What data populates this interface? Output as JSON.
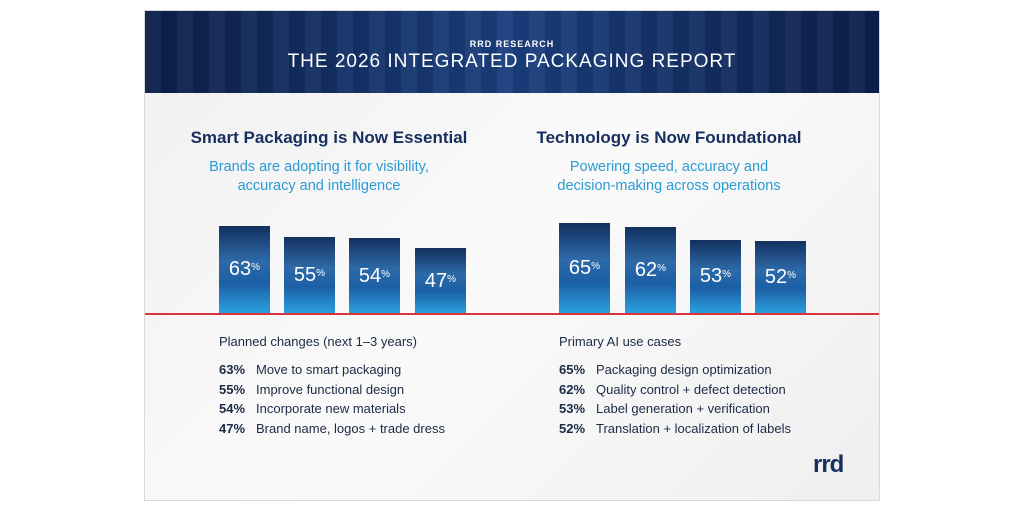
{
  "header": {
    "kicker": "RRD RESEARCH",
    "title": "THE 2026 INTEGRATED PACKAGING REPORT"
  },
  "left": {
    "title": "Smart Packaging is Now Essential",
    "subtitle": "Brands are adopting it for visibility, accuracy and intelligence",
    "list_heading": "Planned changes (next 1–3 years)",
    "items": [
      {
        "pct": "63%",
        "label": "Move to smart packaging"
      },
      {
        "pct": "55%",
        "label": "Improve functional design"
      },
      {
        "pct": "54%",
        "label": "Incorporate new materials"
      },
      {
        "pct": "47%",
        "label": "Brand name, logos + trade dress"
      }
    ]
  },
  "right": {
    "title": "Technology is Now Foundational",
    "subtitle": "Powering speed, accuracy and decision-making across operations",
    "list_heading": "Primary AI use cases",
    "items": [
      {
        "pct": "65%",
        "label": "Packaging design optimization"
      },
      {
        "pct": "62%",
        "label": "Quality control + defect detection"
      },
      {
        "pct": "53%",
        "label": "Label generation + verification"
      },
      {
        "pct": "52%",
        "label": "Translation + localization of labels"
      }
    ]
  },
  "chart_data": [
    {
      "type": "bar",
      "categories": [
        "Move to smart packaging",
        "Improve functional design",
        "Incorporate new materials",
        "Brand name, logos + trade dress"
      ],
      "values": [
        63,
        55,
        54,
        47
      ],
      "unit": "%"
    },
    {
      "type": "bar",
      "categories": [
        "Packaging design optimization",
        "Quality control + defect detection",
        "Label generation + verification",
        "Translation + localization of labels"
      ],
      "values": [
        65,
        62,
        53,
        52
      ],
      "unit": "%"
    }
  ],
  "logo": "rrd",
  "colors": {
    "navy": "#172f5e",
    "accent_blue": "#2a9bd3",
    "baseline_red": "#d8333f"
  }
}
